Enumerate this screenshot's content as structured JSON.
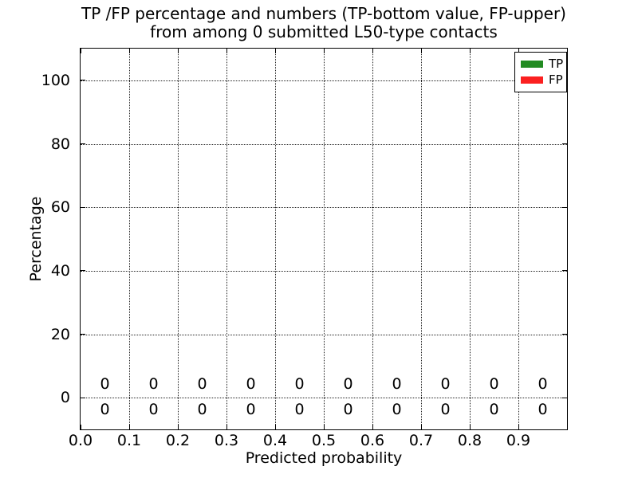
{
  "chart_data": {
    "type": "bar",
    "title_line1": "TP /FP percentage and numbers (TP-bottom value, FP-upper)",
    "title_line2": "from among 0 submitted L50-type contacts",
    "title": "TP /FP percentage and numbers (TP-bottom value, FP-upper)\nfrom among 0 submitted L50-type contacts",
    "xlabel": "Predicted probability",
    "ylabel": "Percentage",
    "xlim": [
      0.0,
      1.0
    ],
    "ylim": [
      -10,
      110
    ],
    "grid": "dotted",
    "axis_color": "#000000",
    "grid_color": "#222222",
    "background_color": "#ffffff",
    "x_tick_values": [
      0.0,
      0.1,
      0.2,
      0.3,
      0.4,
      0.5,
      0.6,
      0.7,
      0.8,
      0.9
    ],
    "x_tick_labels": [
      "0.0",
      "0.1",
      "0.2",
      "0.3",
      "0.4",
      "0.5",
      "0.6",
      "0.7",
      "0.8",
      "0.9"
    ],
    "y_tick_values": [
      0,
      20,
      40,
      60,
      80,
      100
    ],
    "y_tick_labels": [
      "0",
      "20",
      "40",
      "60",
      "80",
      "100"
    ],
    "categories": [
      0.05,
      0.15,
      0.25,
      0.35,
      0.45,
      0.55,
      0.65,
      0.75,
      0.85,
      0.95
    ],
    "series": [
      {
        "name": "TP",
        "color": "#228b22",
        "values": [
          0,
          0,
          0,
          0,
          0,
          0,
          0,
          0,
          0,
          0
        ],
        "annotation_y": -3.8
      },
      {
        "name": "FP",
        "color": "#fb2020",
        "values": [
          0,
          0,
          0,
          0,
          0,
          0,
          0,
          0,
          0,
          0
        ],
        "annotation_y": 4.2
      }
    ],
    "legend": {
      "position": "upper-right"
    }
  }
}
